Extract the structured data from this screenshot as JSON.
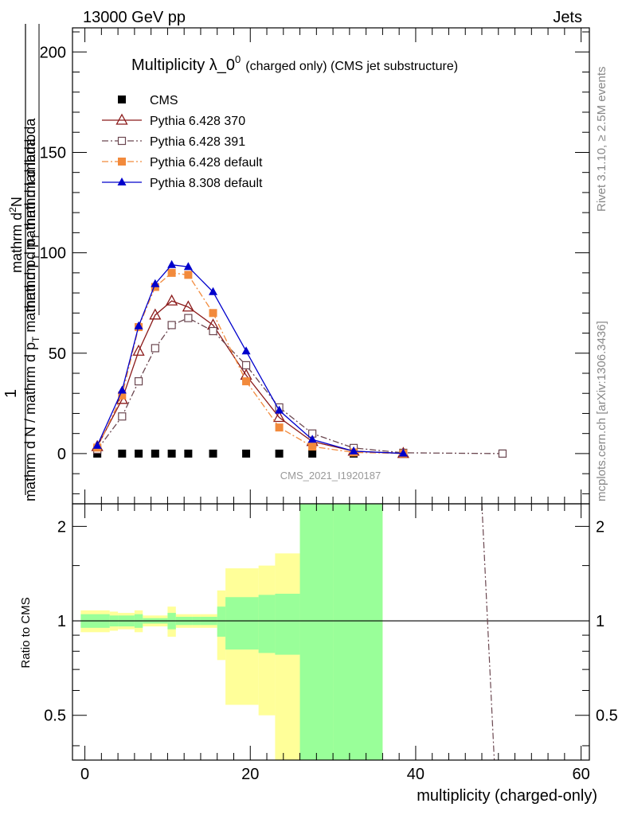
{
  "header": {
    "left": "13000 GeV pp",
    "right": "Jets"
  },
  "title": {
    "main": "Multiplicity λ_0",
    "superscript": "0",
    "sub": "(charged only) (CMS jet substructure)"
  },
  "side_labels": {
    "rivet": "Rivet 3.1.10, ≥ 2.5M events",
    "mcplots": "mcplots.cern.ch [arXiv:1306.3436]"
  },
  "ylabel": {
    "numerator_one": "1",
    "numerator_rest": "mathrm d²N",
    "denominator_top": "mathrm d p_T mathrm d lambda",
    "frac_denominator": "mathrm d N / mathrm d p_T mathrm d p_T mathrm d lambda"
  },
  "ylabel_lines": {
    "top": "mathrm d",
    "top_sup": "2",
    "top_end": "N",
    "mid": "mathrm d p",
    "mid_sub": "T",
    "mid_end": " mathrm d lambda",
    "left1": "1",
    "bottom": "mathrm d N / mathrm d p",
    "bottom_sub": "T",
    "bottom_end": " mathrm d p",
    "bottom_sub2": "T",
    "bottom_end2": " mathrm d lambda"
  },
  "watermark": "CMS_2021_I1920187",
  "ratio_ylabel": "Ratio to CMS",
  "xlabel": "multiplicity (charged-only)",
  "legend": [
    {
      "name": "CMS",
      "color": "#000000",
      "marker": "filled-square",
      "line": "none"
    },
    {
      "name": "Pythia 6.428 370",
      "color": "#8b1a1a",
      "marker": "open-triangle",
      "line": "solid"
    },
    {
      "name": "Pythia 6.428 391",
      "color": "#6b4750",
      "marker": "open-square",
      "line": "dashdot"
    },
    {
      "name": "Pythia 6.428 default",
      "color": "#f28a3c",
      "marker": "filled-square",
      "line": "dashdot"
    },
    {
      "name": "Pythia 8.308 default",
      "color": "#0000cc",
      "marker": "filled-triangle",
      "line": "solid"
    }
  ],
  "chart_data": {
    "type": "line",
    "main_panel": {
      "xlim": [
        -1.5,
        61
      ],
      "ylim": [
        -25,
        212
      ],
      "y_ticks": [
        0,
        50,
        100,
        150,
        200
      ],
      "x_ticks": [
        0,
        20,
        40,
        60
      ],
      "series": [
        {
          "name": "CMS",
          "x": [
            1.5,
            4.5,
            6.5,
            8.5,
            10.5,
            12.5,
            15.5,
            19.5,
            23.5,
            27.5,
            32.5,
            38.5,
            50.5
          ],
          "y": [
            0,
            0,
            0,
            0,
            0,
            0,
            0,
            0,
            0,
            0,
            0,
            0,
            0
          ]
        },
        {
          "name": "Pythia 6.428 370",
          "x": [
            1.5,
            4.5,
            6.5,
            8.5,
            10.5,
            12.5,
            15.5,
            19.5,
            23.5,
            27.5,
            32.5,
            38.5
          ],
          "y": [
            3.5,
            27,
            51,
            69,
            76,
            73,
            64,
            39,
            18,
            6,
            1.2,
            0.1
          ]
        },
        {
          "name": "Pythia 6.428 391",
          "x": [
            1.5,
            4.5,
            6.5,
            8.5,
            10.5,
            12.5,
            15.5,
            19.5,
            23.5,
            27.5,
            32.5,
            38.5,
            50.5
          ],
          "y": [
            2,
            18.5,
            36,
            52.5,
            64,
            67.5,
            61,
            44,
            23,
            10,
            2.8,
            0.4,
            0
          ]
        },
        {
          "name": "Pythia 6.428 default",
          "x": [
            1.5,
            4.5,
            6.5,
            8.5,
            10.5,
            12.5,
            15.5,
            19.5,
            23.5,
            27.5,
            32.5,
            38.5
          ],
          "y": [
            3,
            29,
            63,
            83,
            90,
            89,
            70,
            36,
            13,
            3.5,
            0.6,
            0.05
          ]
        },
        {
          "name": "Pythia 8.308 default",
          "x": [
            1.5,
            4.5,
            6.5,
            8.5,
            10.5,
            12.5,
            15.5,
            19.5,
            23.5,
            27.5,
            32.5,
            38.5
          ],
          "y": [
            4,
            31.5,
            63.5,
            84.5,
            94,
            93,
            80.5,
            51,
            21.5,
            7,
            1.2,
            0.1
          ]
        }
      ]
    },
    "ratio_panel": {
      "ylabel": "Ratio to CMS",
      "ylim": [
        0.36,
        2.36
      ],
      "y_ticks": [
        0.5,
        1,
        2
      ],
      "reference": 1,
      "band_edges": [
        -0.5,
        3,
        4,
        6,
        7,
        9,
        10,
        11,
        13,
        14,
        16,
        17,
        21,
        23,
        26,
        30,
        36,
        41.5,
        59.5
      ],
      "yellow_band": {
        "lower": [
          0.92,
          0.93,
          0.94,
          0.92,
          0.96,
          0.96,
          0.89,
          0.95,
          0.95,
          0.95,
          0.75,
          0.54,
          0.5,
          0.36,
          0.36,
          0.36
        ],
        "upper": [
          1.08,
          1.07,
          1.06,
          1.08,
          1.04,
          1.04,
          1.11,
          1.05,
          1.05,
          1.05,
          1.25,
          1.47,
          1.5,
          1.64,
          2.36,
          2.36
        ]
      },
      "green_band": {
        "lower": [
          0.95,
          0.96,
          0.96,
          0.95,
          0.98,
          0.98,
          0.94,
          0.97,
          0.97,
          0.97,
          0.89,
          0.81,
          0.79,
          0.78,
          0.36,
          0.36
        ],
        "upper": [
          1.05,
          1.04,
          1.04,
          1.05,
          1.02,
          1.02,
          1.06,
          1.03,
          1.03,
          1.03,
          1.11,
          1.19,
          1.21,
          1.22,
          2.36,
          2.36
        ]
      },
      "band_colors": {
        "yellow": "#ffff99",
        "green": "#99ff99"
      },
      "ratio_line": {
        "name": "Pythia 6.428 391",
        "x": [
          48,
          49.5
        ],
        "y": [
          2.36,
          0.36
        ]
      }
    }
  }
}
